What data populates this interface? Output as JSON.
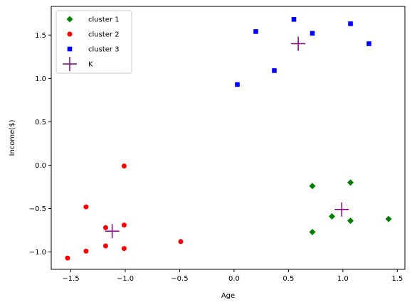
{
  "chart_data": {
    "type": "scatter",
    "xlabel": "Age",
    "ylabel": "Income($)",
    "xlim": [
      -1.68,
      1.57
    ],
    "ylim": [
      -1.2,
      1.83
    ],
    "xticks": [
      -1.5,
      -1.0,
      -0.5,
      0.0,
      0.5,
      1.0,
      1.5
    ],
    "xtick_labels": [
      "−1.5",
      "−1.0",
      "−0.5",
      "0.0",
      "0.5",
      "1.0",
      "1.5"
    ],
    "yticks": [
      -1.0,
      -0.5,
      0.0,
      0.5,
      1.0,
      1.5
    ],
    "ytick_labels": [
      "−1.0",
      "−0.5",
      "0.0",
      "0.5",
      "1.0",
      "1.5"
    ],
    "grid": false,
    "legend": "top-left",
    "series": [
      {
        "name": "cluster 1",
        "marker": "diamond",
        "color": "#008000",
        "points": [
          [
            0.72,
            -0.24
          ],
          [
            1.07,
            -0.2
          ],
          [
            0.9,
            -0.59
          ],
          [
            0.72,
            -0.77
          ],
          [
            1.07,
            -0.64
          ],
          [
            1.42,
            -0.62
          ]
        ]
      },
      {
        "name": "cluster 2",
        "marker": "circle",
        "color": "#ff0000",
        "points": [
          [
            -1.01,
            -0.01
          ],
          [
            -1.36,
            -0.48
          ],
          [
            -1.18,
            -0.72
          ],
          [
            -1.01,
            -0.69
          ],
          [
            -1.18,
            -0.93
          ],
          [
            -1.36,
            -0.99
          ],
          [
            -1.01,
            -0.96
          ],
          [
            -1.53,
            -1.07
          ],
          [
            -0.49,
            -0.88
          ]
        ]
      },
      {
        "name": "cluster 3",
        "marker": "square",
        "color": "#0000ff",
        "points": [
          [
            0.03,
            0.93
          ],
          [
            0.2,
            1.54
          ],
          [
            0.37,
            1.09
          ],
          [
            0.55,
            1.68
          ],
          [
            0.72,
            1.52
          ],
          [
            1.07,
            1.63
          ],
          [
            1.24,
            1.4
          ]
        ]
      },
      {
        "name": "K",
        "marker": "plus",
        "color": "#800080",
        "points": [
          [
            0.59,
            1.4
          ],
          [
            -1.12,
            -0.76
          ],
          [
            0.99,
            -0.51
          ]
        ]
      }
    ]
  }
}
